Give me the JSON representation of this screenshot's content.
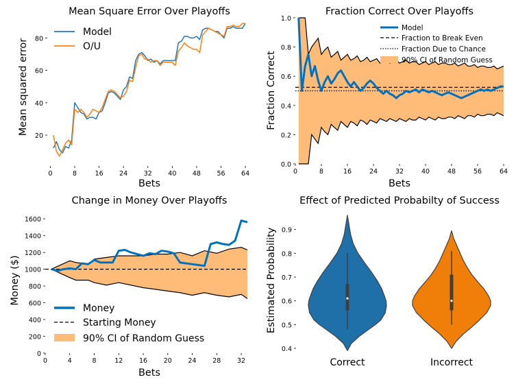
{
  "colors": {
    "blue": "#1f77b4",
    "orange": "#ff7f0e",
    "blue_bold": "#0072bd",
    "band_fill": "#ffbb78",
    "violin_blue": "#1f6fa8",
    "violin_orange": "#f07f0a",
    "box": "#3f3f3f"
  },
  "chart_data": [
    {
      "type": "line",
      "title": "Mean Square Error Over Playoffs",
      "xlabel": "Bets",
      "ylabel": "Mean squared error",
      "xlim": [
        -1,
        66
      ],
      "ylim": [
        1,
        92
      ],
      "xticks": [
        0,
        8,
        16,
        24,
        32,
        40,
        48,
        56,
        64
      ],
      "yticks": [
        20,
        40,
        60,
        80
      ],
      "legend_position": "upper-left",
      "grid": false,
      "series": [
        {
          "name": "Model",
          "color": "blue",
          "x": [
            1,
            2,
            3,
            4,
            5,
            6,
            7,
            8,
            9,
            10,
            11,
            12,
            13,
            14,
            15,
            16,
            17,
            18,
            19,
            20,
            21,
            22,
            23,
            24,
            25,
            26,
            27,
            28,
            29,
            30,
            31,
            32,
            33,
            34,
            35,
            36,
            37,
            38,
            39,
            40,
            41,
            42,
            43,
            44,
            45,
            46,
            47,
            48,
            49,
            50,
            51,
            52,
            53,
            54,
            55,
            56,
            57,
            58,
            59,
            60,
            61,
            62,
            63,
            64
          ],
          "y": [
            12,
            16,
            11,
            9,
            13,
            12,
            17,
            40,
            37,
            34,
            33,
            30,
            31,
            31,
            30,
            34,
            35,
            40,
            46,
            47,
            46,
            44,
            42,
            48,
            50,
            56,
            55,
            66,
            70,
            71,
            69,
            66,
            67,
            65,
            66,
            64,
            66,
            66,
            66,
            66,
            66,
            77,
            78,
            81,
            81,
            80,
            80,
            81,
            79,
            85,
            86,
            86,
            85,
            84,
            84,
            82,
            80,
            86,
            86,
            87,
            86,
            86,
            86,
            89
          ]
        },
        {
          "name": "O/U",
          "color": "orange",
          "x": [
            1,
            2,
            3,
            4,
            5,
            6,
            7,
            8,
            9,
            10,
            11,
            12,
            13,
            14,
            15,
            16,
            17,
            18,
            19,
            20,
            21,
            22,
            23,
            24,
            25,
            26,
            27,
            28,
            29,
            30,
            31,
            32,
            33,
            34,
            35,
            36,
            37,
            38,
            39,
            40,
            41,
            42,
            43,
            44,
            45,
            46,
            47,
            48,
            49,
            50,
            51,
            52,
            53,
            54,
            55,
            56,
            57,
            58,
            59,
            60,
            61,
            62,
            63,
            64
          ],
          "y": [
            20,
            10,
            7,
            11,
            15,
            17,
            14,
            36,
            34,
            36,
            34,
            31,
            33,
            36,
            35,
            34,
            37,
            42,
            47,
            48,
            47,
            45,
            43,
            44,
            47,
            54,
            53,
            62,
            69,
            70,
            67,
            67,
            65,
            66,
            66,
            63,
            65,
            65,
            65,
            65,
            63,
            72,
            74,
            77,
            75,
            74,
            73,
            73,
            71,
            82,
            84,
            86,
            85,
            84,
            83,
            82,
            81,
            87,
            87,
            88,
            87,
            87,
            89,
            89
          ]
        }
      ]
    },
    {
      "type": "line",
      "title": "Fraction Correct Over Playoffs",
      "xlabel": "Bets",
      "ylabel": "Fraction Correct",
      "xlim": [
        0,
        64
      ],
      "ylim": [
        0,
        1
      ],
      "xticks": [
        0,
        8,
        16,
        24,
        32,
        40,
        48,
        56,
        64
      ],
      "yticks": [
        0.0,
        0.2,
        0.4,
        0.6,
        0.8,
        1.0
      ],
      "legend_position": "upper-right",
      "grid": false,
      "legend": [
        "Model",
        "Fraction to Break Even",
        "Fraction Due to Chance",
        "90% CI of Random Guess"
      ],
      "break_even": 0.524,
      "chance": 0.5,
      "series": [
        {
          "name": "Model",
          "color": "blue_bold",
          "x": [
            1,
            2,
            3,
            4,
            5,
            6,
            7,
            8,
            9,
            10,
            11,
            12,
            13,
            14,
            15,
            16,
            17,
            18,
            19,
            20,
            21,
            22,
            23,
            24,
            25,
            26,
            27,
            28,
            29,
            30,
            31,
            32,
            33,
            34,
            35,
            36,
            37,
            38,
            39,
            40,
            41,
            42,
            43,
            44,
            45,
            46,
            47,
            48,
            49,
            50,
            51,
            52,
            53,
            54,
            55,
            56,
            57,
            58,
            59,
            60,
            61,
            62,
            63,
            64
          ],
          "y": [
            1.0,
            0.5,
            0.67,
            0.75,
            0.6,
            0.67,
            0.57,
            0.5,
            0.56,
            0.6,
            0.55,
            0.58,
            0.62,
            0.64,
            0.6,
            0.56,
            0.53,
            0.56,
            0.53,
            0.5,
            0.52,
            0.55,
            0.57,
            0.55,
            0.52,
            0.5,
            0.48,
            0.5,
            0.48,
            0.47,
            0.45,
            0.47,
            0.48,
            0.5,
            0.49,
            0.5,
            0.51,
            0.49,
            0.51,
            0.5,
            0.49,
            0.5,
            0.49,
            0.48,
            0.47,
            0.48,
            0.49,
            0.48,
            0.47,
            0.46,
            0.45,
            0.46,
            0.47,
            0.48,
            0.49,
            0.5,
            0.51,
            0.5,
            0.51,
            0.5,
            0.51,
            0.52,
            0.53,
            0.53
          ]
        }
      ],
      "ci_band": {
        "name": "90% CI of Random Guess",
        "x": [
          1,
          2,
          3,
          4,
          5,
          6,
          7,
          8,
          9,
          10,
          11,
          12,
          13,
          14,
          15,
          16,
          17,
          18,
          19,
          20,
          21,
          22,
          23,
          24,
          25,
          26,
          27,
          28,
          29,
          30,
          31,
          32,
          33,
          34,
          35,
          36,
          37,
          38,
          39,
          40,
          41,
          42,
          43,
          44,
          45,
          46,
          47,
          48,
          49,
          50,
          51,
          52,
          53,
          54,
          55,
          56,
          57,
          58,
          59,
          60,
          61,
          62,
          63,
          64
        ],
        "lower": [
          0.0,
          0.0,
          0.0,
          0.0,
          0.2,
          0.17,
          0.14,
          0.25,
          0.22,
          0.2,
          0.27,
          0.25,
          0.23,
          0.29,
          0.27,
          0.25,
          0.29,
          0.28,
          0.26,
          0.3,
          0.29,
          0.27,
          0.3,
          0.29,
          0.28,
          0.31,
          0.3,
          0.29,
          0.31,
          0.3,
          0.29,
          0.31,
          0.3,
          0.29,
          0.31,
          0.3,
          0.3,
          0.32,
          0.31,
          0.3,
          0.32,
          0.31,
          0.3,
          0.32,
          0.31,
          0.31,
          0.32,
          0.32,
          0.31,
          0.33,
          0.32,
          0.31,
          0.33,
          0.33,
          0.32,
          0.34,
          0.33,
          0.33,
          0.34,
          0.34,
          0.33,
          0.35,
          0.34,
          0.33
        ],
        "upper": [
          1.0,
          1.0,
          1.0,
          0.75,
          0.8,
          0.83,
          0.86,
          0.75,
          0.78,
          0.8,
          0.73,
          0.75,
          0.77,
          0.71,
          0.73,
          0.75,
          0.71,
          0.72,
          0.74,
          0.7,
          0.71,
          0.73,
          0.7,
          0.71,
          0.72,
          0.69,
          0.7,
          0.71,
          0.69,
          0.7,
          0.71,
          0.69,
          0.7,
          0.71,
          0.69,
          0.7,
          0.7,
          0.68,
          0.69,
          0.7,
          0.68,
          0.69,
          0.7,
          0.68,
          0.69,
          0.69,
          0.68,
          0.68,
          0.69,
          0.67,
          0.68,
          0.69,
          0.67,
          0.67,
          0.68,
          0.66,
          0.67,
          0.67,
          0.66,
          0.66,
          0.67,
          0.65,
          0.66,
          0.67
        ]
      }
    },
    {
      "type": "line",
      "title": "Change in Money Over Playoffs",
      "xlabel": "Bets",
      "ylabel": "Money ($)",
      "xlim": [
        0,
        33
      ],
      "ylim": [
        0,
        1700
      ],
      "xticks": [
        0,
        4,
        8,
        12,
        16,
        20,
        24,
        28,
        32
      ],
      "yticks": [
        0,
        200,
        400,
        600,
        800,
        1000,
        1200,
        1400,
        1600
      ],
      "legend_position": "lower-left",
      "grid": false,
      "legend": [
        "Money",
        "Starting Money",
        "90% CI of Random Guess"
      ],
      "starting_money": 1000,
      "series": [
        {
          "name": "Money",
          "color": "blue_bold",
          "x": [
            1,
            2,
            3,
            4,
            5,
            6,
            7,
            8,
            9,
            10,
            11,
            12,
            13,
            14,
            15,
            16,
            17,
            18,
            19,
            20,
            21,
            22,
            23,
            24,
            25,
            26,
            27,
            28,
            29,
            30,
            31,
            32,
            33
          ],
          "y": [
            1000,
            980,
            1000,
            1010,
            1000,
            1070,
            1060,
            1110,
            1080,
            1080,
            1080,
            1220,
            1230,
            1200,
            1180,
            1160,
            1190,
            1180,
            1220,
            1210,
            1190,
            1080,
            1070,
            1060,
            1050,
            1040,
            1300,
            1320,
            1300,
            1290,
            1340,
            1580,
            1560
          ]
        }
      ],
      "ci_band": {
        "name": "90% CI of Random Guess",
        "x": [
          1,
          4,
          5,
          7,
          8,
          10,
          12,
          16,
          18,
          20,
          22,
          24,
          26,
          28,
          30,
          32,
          33
        ],
        "upper": [
          1000,
          1100,
          1080,
          1060,
          1120,
          1140,
          1160,
          1160,
          1180,
          1180,
          1200,
          1160,
          1220,
          1190,
          1240,
          1260,
          1230
        ],
        "lower": [
          1000,
          900,
          870,
          870,
          840,
          810,
          840,
          780,
          760,
          740,
          720,
          690,
          720,
          690,
          670,
          700,
          650
        ]
      }
    },
    {
      "type": "violin",
      "title": "Effect of Predicted Probabilty of Success",
      "xlabel": "",
      "ylabel": "Estimated Probability",
      "ylim": [
        0.38,
        0.98
      ],
      "yticks": [
        0.4,
        0.5,
        0.6,
        0.7,
        0.8,
        0.9
      ],
      "categories": [
        "Correct",
        "Incorrect"
      ],
      "violins": [
        {
          "name": "Correct",
          "color": "violin_blue",
          "min": 0.48,
          "q1": 0.56,
          "median": 0.61,
          "q3": 0.67,
          "max": 0.8,
          "kde_y": [
            0.39,
            0.42,
            0.45,
            0.48,
            0.5,
            0.52,
            0.55,
            0.58,
            0.6,
            0.62,
            0.65,
            0.68,
            0.72,
            0.76,
            0.8,
            0.84,
            0.88,
            0.92,
            0.96
          ],
          "kde_w": [
            0.0,
            0.1,
            0.3,
            0.55,
            0.72,
            0.86,
            0.97,
            1.0,
            0.99,
            0.95,
            0.88,
            0.78,
            0.62,
            0.44,
            0.27,
            0.15,
            0.08,
            0.04,
            0.0
          ]
        },
        {
          "name": "Incorrect",
          "color": "violin_orange",
          "min": 0.5,
          "q1": 0.56,
          "median": 0.6,
          "q3": 0.71,
          "max": 0.81,
          "kde_y": [
            0.4,
            0.43,
            0.46,
            0.49,
            0.52,
            0.55,
            0.58,
            0.6,
            0.62,
            0.65,
            0.68,
            0.71,
            0.74,
            0.77,
            0.8,
            0.83,
            0.86,
            0.895
          ],
          "kde_w": [
            0.0,
            0.12,
            0.3,
            0.52,
            0.72,
            0.9,
            1.0,
            1.0,
            0.95,
            0.83,
            0.67,
            0.52,
            0.4,
            0.3,
            0.22,
            0.14,
            0.06,
            0.0
          ]
        }
      ]
    }
  ]
}
